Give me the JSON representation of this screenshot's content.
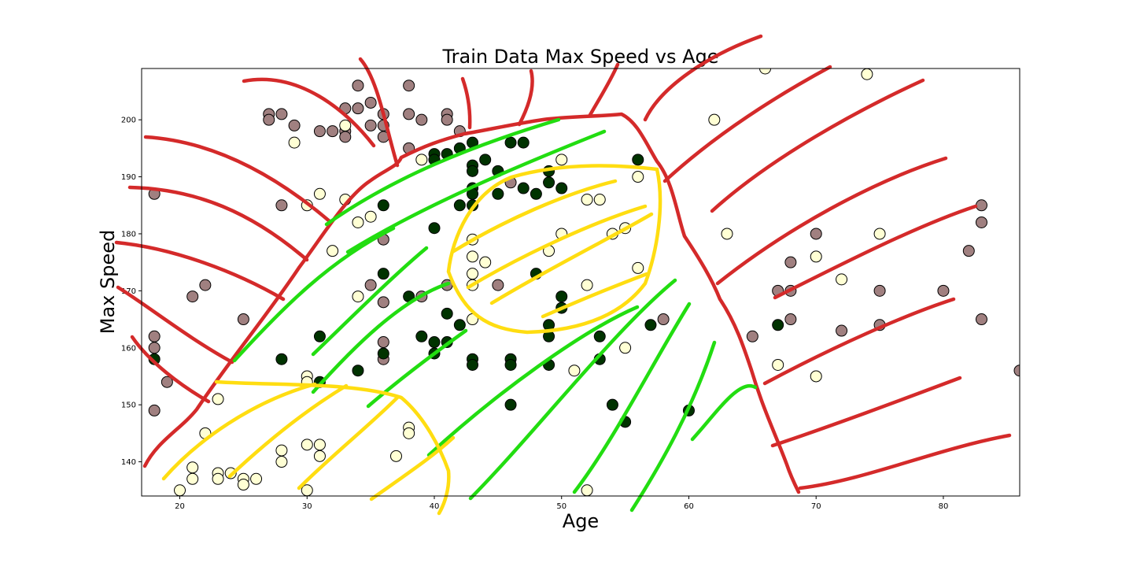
{
  "chart_data": {
    "type": "scatter",
    "title": "Train Data Max Speed vs Age",
    "xlabel": "Age",
    "ylabel": "Max Speed",
    "xlim": [
      17,
      86
    ],
    "ylim": [
      134,
      209
    ],
    "xticks": [
      20,
      30,
      40,
      50,
      60,
      70,
      80
    ],
    "yticks": [
      140,
      150,
      160,
      170,
      180,
      190,
      200
    ],
    "grid": false,
    "colors": {
      "mauve": "#a08080",
      "green": "#003300",
      "cream": "#ffffd4",
      "edge": "#000000",
      "red_annotation": "#d42a2a",
      "green_annotation": "#22dd11",
      "yellow_annotation": "#ffdd11"
    },
    "series": [
      {
        "color_key": "mauve",
        "points": [
          [
            18,
            187
          ],
          [
            18,
            162
          ],
          [
            18,
            160
          ],
          [
            18,
            149
          ],
          [
            19,
            154
          ],
          [
            21,
            169
          ],
          [
            22,
            171
          ],
          [
            25,
            165
          ],
          [
            27,
            201
          ],
          [
            27,
            200
          ],
          [
            28,
            201
          ],
          [
            28,
            185
          ],
          [
            29,
            199
          ],
          [
            31,
            198
          ],
          [
            32,
            198
          ],
          [
            33,
            202
          ],
          [
            33,
            198
          ],
          [
            33,
            197
          ],
          [
            34,
            206
          ],
          [
            34,
            202
          ],
          [
            35,
            203
          ],
          [
            35,
            199
          ],
          [
            35,
            171
          ],
          [
            36,
            201
          ],
          [
            36,
            199
          ],
          [
            36,
            197
          ],
          [
            36,
            179
          ],
          [
            36,
            168
          ],
          [
            36,
            161
          ],
          [
            36,
            158
          ],
          [
            38,
            206
          ],
          [
            38,
            201
          ],
          [
            38,
            195
          ],
          [
            39,
            200
          ],
          [
            39,
            169
          ],
          [
            41,
            201
          ],
          [
            41,
            200
          ],
          [
            41,
            171
          ],
          [
            42,
            198
          ],
          [
            45,
            171
          ],
          [
            46,
            189
          ],
          [
            58,
            165
          ],
          [
            65,
            162
          ],
          [
            67,
            170
          ],
          [
            68,
            175
          ],
          [
            68,
            170
          ],
          [
            68,
            165
          ],
          [
            70,
            180
          ],
          [
            72,
            163
          ],
          [
            75,
            170
          ],
          [
            75,
            164
          ],
          [
            80,
            170
          ],
          [
            82,
            177
          ],
          [
            83,
            185
          ],
          [
            83,
            182
          ],
          [
            83,
            165
          ],
          [
            86,
            156
          ]
        ]
      },
      {
        "color_key": "green",
        "points": [
          [
            18,
            158
          ],
          [
            28,
            158
          ],
          [
            31,
            162
          ],
          [
            31,
            154
          ],
          [
            34,
            156
          ],
          [
            36,
            185
          ],
          [
            36,
            173
          ],
          [
            36,
            159
          ],
          [
            38,
            169
          ],
          [
            39,
            162
          ],
          [
            40,
            194
          ],
          [
            40,
            193
          ],
          [
            40,
            181
          ],
          [
            40,
            161
          ],
          [
            40,
            159
          ],
          [
            41,
            194
          ],
          [
            41,
            166
          ],
          [
            41,
            161
          ],
          [
            42,
            195
          ],
          [
            42,
            185
          ],
          [
            42,
            164
          ],
          [
            43,
            196
          ],
          [
            43,
            192
          ],
          [
            43,
            191
          ],
          [
            43,
            188
          ],
          [
            43,
            187
          ],
          [
            43,
            185
          ],
          [
            43,
            158
          ],
          [
            43,
            157
          ],
          [
            44,
            193
          ],
          [
            45,
            191
          ],
          [
            45,
            187
          ],
          [
            46,
            196
          ],
          [
            46,
            158
          ],
          [
            46,
            157
          ],
          [
            46,
            150
          ],
          [
            47,
            196
          ],
          [
            47,
            188
          ],
          [
            48,
            187
          ],
          [
            48,
            173
          ],
          [
            49,
            191
          ],
          [
            49,
            189
          ],
          [
            49,
            164
          ],
          [
            49,
            162
          ],
          [
            49,
            157
          ],
          [
            50,
            188
          ],
          [
            50,
            169
          ],
          [
            50,
            167
          ],
          [
            53,
            162
          ],
          [
            53,
            158
          ],
          [
            54,
            150
          ],
          [
            55,
            147
          ],
          [
            56,
            193
          ],
          [
            57,
            164
          ],
          [
            60,
            149
          ],
          [
            67,
            164
          ]
        ]
      },
      {
        "color_key": "cream",
        "points": [
          [
            20,
            135
          ],
          [
            21,
            139
          ],
          [
            21,
            137
          ],
          [
            22,
            145
          ],
          [
            23,
            151
          ],
          [
            23,
            138
          ],
          [
            23,
            137
          ],
          [
            24,
            138
          ],
          [
            25,
            137
          ],
          [
            25,
            136
          ],
          [
            26,
            137
          ],
          [
            28,
            142
          ],
          [
            28,
            140
          ],
          [
            29,
            196
          ],
          [
            30,
            185
          ],
          [
            30,
            155
          ],
          [
            30,
            154
          ],
          [
            30,
            143
          ],
          [
            30,
            135
          ],
          [
            31,
            187
          ],
          [
            31,
            143
          ],
          [
            31,
            141
          ],
          [
            32,
            177
          ],
          [
            33,
            199
          ],
          [
            33,
            186
          ],
          [
            34,
            182
          ],
          [
            34,
            169
          ],
          [
            35,
            183
          ],
          [
            37,
            141
          ],
          [
            38,
            146
          ],
          [
            38,
            145
          ],
          [
            39,
            193
          ],
          [
            43,
            179
          ],
          [
            43,
            176
          ],
          [
            43,
            173
          ],
          [
            43,
            171
          ],
          [
            43,
            165
          ],
          [
            44,
            175
          ],
          [
            49,
            177
          ],
          [
            50,
            193
          ],
          [
            50,
            180
          ],
          [
            51,
            156
          ],
          [
            52,
            186
          ],
          [
            52,
            171
          ],
          [
            52,
            135
          ],
          [
            53,
            186
          ],
          [
            54,
            180
          ],
          [
            55,
            181
          ],
          [
            55,
            160
          ],
          [
            56,
            190
          ],
          [
            56,
            174
          ],
          [
            62,
            200
          ],
          [
            63,
            180
          ],
          [
            66,
            209
          ],
          [
            67,
            157
          ],
          [
            70,
            176
          ],
          [
            70,
            155
          ],
          [
            72,
            172
          ],
          [
            74,
            208
          ],
          [
            75,
            180
          ]
        ]
      }
    ]
  }
}
